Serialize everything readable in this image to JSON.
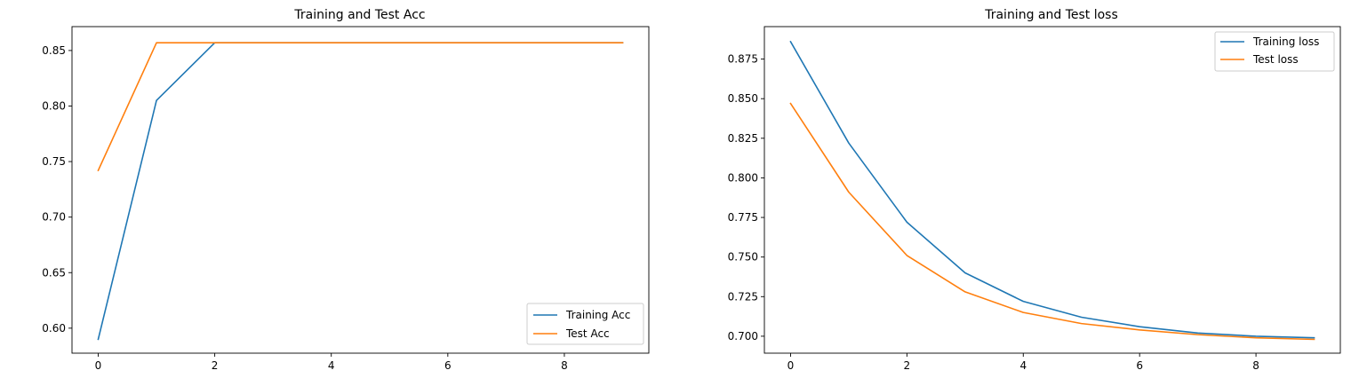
{
  "colors": {
    "training": "#1f77b4",
    "test": "#ff7f0e"
  },
  "chart_data": [
    {
      "type": "line",
      "title": "Training and Test Acc",
      "xlabel": "",
      "ylabel": "",
      "xlim": [
        -0.45,
        9.45
      ],
      "ylim": [
        0.5775,
        0.8715
      ],
      "xticks": [
        0,
        2,
        4,
        6,
        8
      ],
      "yticks": [
        0.6,
        0.65,
        0.7,
        0.75,
        0.8,
        0.85
      ],
      "ytick_labels": [
        "0.60",
        "0.65",
        "0.70",
        "0.75",
        "0.80",
        "0.85"
      ],
      "legend_position": "lower right",
      "series": [
        {
          "name": "Training Acc",
          "color": "#1f77b4",
          "x": [
            0,
            1,
            2,
            3,
            4,
            5,
            6,
            7,
            8,
            9
          ],
          "values": [
            0.59,
            0.805,
            0.857,
            0.857,
            0.857,
            0.857,
            0.857,
            0.857,
            0.857,
            0.857
          ]
        },
        {
          "name": "Test Acc",
          "color": "#ff7f0e",
          "x": [
            0,
            1,
            2,
            3,
            4,
            5,
            6,
            7,
            8,
            9
          ],
          "values": [
            0.742,
            0.857,
            0.857,
            0.857,
            0.857,
            0.857,
            0.857,
            0.857,
            0.857,
            0.857
          ]
        }
      ]
    },
    {
      "type": "line",
      "title": "Training and Test loss",
      "xlabel": "",
      "ylabel": "",
      "xlim": [
        -0.45,
        9.45
      ],
      "ylim": [
        0.6893,
        0.8955
      ],
      "xticks": [
        0,
        2,
        4,
        6,
        8
      ],
      "yticks": [
        0.7,
        0.725,
        0.75,
        0.775,
        0.8,
        0.825,
        0.85,
        0.875
      ],
      "ytick_labels": [
        "0.700",
        "0.725",
        "0.750",
        "0.775",
        "0.800",
        "0.825",
        "0.850",
        "0.875"
      ],
      "legend_position": "upper right",
      "series": [
        {
          "name": "Training loss",
          "color": "#1f77b4",
          "x": [
            0,
            1,
            2,
            3,
            4,
            5,
            6,
            7,
            8,
            9
          ],
          "values": [
            0.886,
            0.822,
            0.772,
            0.74,
            0.722,
            0.712,
            0.706,
            0.702,
            0.7,
            0.699
          ]
        },
        {
          "name": "Test loss",
          "color": "#ff7f0e",
          "x": [
            0,
            1,
            2,
            3,
            4,
            5,
            6,
            7,
            8,
            9
          ],
          "values": [
            0.847,
            0.791,
            0.751,
            0.728,
            0.715,
            0.708,
            0.704,
            0.701,
            0.699,
            0.698
          ]
        }
      ]
    }
  ]
}
